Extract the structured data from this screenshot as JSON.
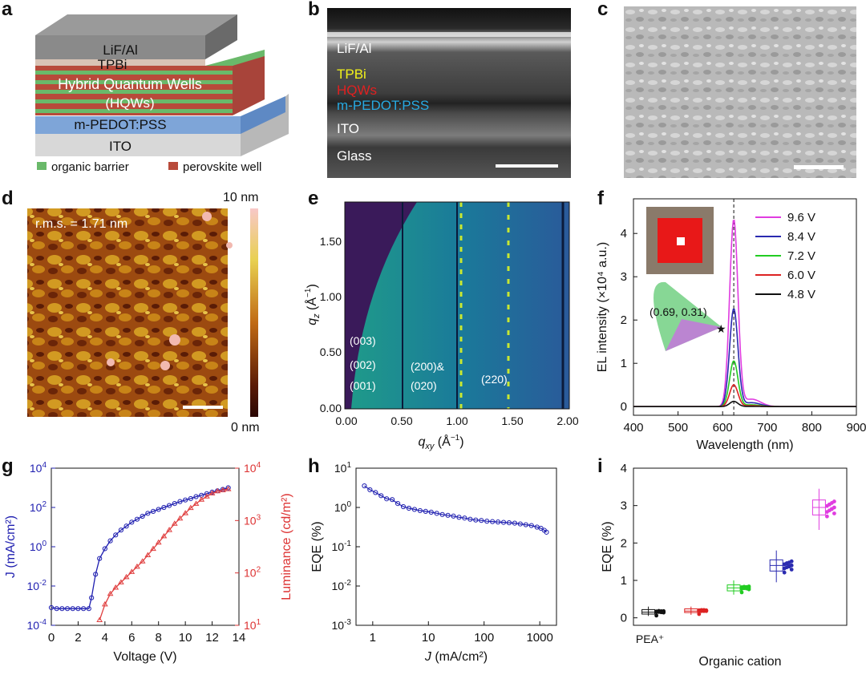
{
  "panel_letters": {
    "a": "a",
    "b": "b",
    "c": "c",
    "d": "d",
    "e": "e",
    "f": "f",
    "g": "g",
    "h": "h",
    "i": "i"
  },
  "panel_a": {
    "layers": [
      "LiF/Al",
      "TPBi",
      "Hybrid Quantum Wells",
      "(HQWs)",
      "m-PEDOT:PSS",
      "ITO"
    ],
    "legend": [
      "organic barrier",
      "perovskite well"
    ],
    "colors": {
      "organic": "#6ab96a",
      "perovskite": "#b84a3a",
      "pedot": "#6f9bd1",
      "ito": "#cfcfcf",
      "lifal": "#7a7a7a",
      "tpbi": "#d9c3b5"
    }
  },
  "panel_b": {
    "labels": [
      {
        "text": "LiF/Al",
        "color": "#ffffff"
      },
      {
        "text": "TPBi",
        "color": "#f2f21a"
      },
      {
        "text": "HQWs",
        "color": "#e02020"
      },
      {
        "text": "m-PEDOT:PSS",
        "color": "#27a9e1"
      },
      {
        "text": "ITO",
        "color": "#ffffff"
      },
      {
        "text": "Glass",
        "color": "#ffffff"
      }
    ]
  },
  "panel_d": {
    "annotation": "r.m.s. = 1.71 nm",
    "colorbar_max": "10 nm",
    "colorbar_min": "0 nm"
  },
  "panel_e": {
    "xlabel_main": "q",
    "xlabel_sub": "xy",
    "xlabel_unit": " (Å",
    "ylabel_main": "q",
    "ylabel_sub": "z",
    "ylabel_unit": " (Å",
    "xticks": [
      "0.00",
      "0.50",
      "1.00",
      "1.50",
      "2.00"
    ],
    "yticks": [
      "0.00",
      "0.50",
      "1.00",
      "1.50"
    ],
    "peaks": [
      "(003)",
      "(002)",
      "(001)",
      "(200)&",
      "(020)",
      "(220)"
    ]
  },
  "chart_data": [
    {
      "type": "line",
      "panel": "f",
      "xlabel": "Wavelength (nm)",
      "ylabel": "EL intensity (×10⁴ a.u.)",
      "xlim": [
        400,
        900
      ],
      "ylim": [
        -0.2,
        4.8
      ],
      "xticks": [
        "400",
        "500",
        "600",
        "700",
        "800",
        "900"
      ],
      "yticks": [
        "0",
        "1",
        "2",
        "3",
        "4"
      ],
      "peak_center": 625,
      "peak_fwhm": 22,
      "series": [
        {
          "name": "9.6 V",
          "peak": 4.3,
          "color": "#e03ce0"
        },
        {
          "name": "8.4 V",
          "peak": 2.25,
          "color": "#2a2ab0"
        },
        {
          "name": "7.2 V",
          "peak": 1.05,
          "color": "#22cc22"
        },
        {
          "name": "6.0 V",
          "peak": 0.5,
          "color": "#dd2222"
        },
        {
          "name": "4.8 V",
          "peak": 0.12,
          "color": "#111111"
        }
      ],
      "inset_coord": "(0.69, 0.31)"
    },
    {
      "type": "line",
      "panel": "g",
      "xlabel": "Voltage (V)",
      "ylabel_left": "J (mA/cm²)",
      "ylabel_right": "Luminance (cd/m²)",
      "xlim": [
        0,
        14
      ],
      "xticks": [
        "0",
        "2",
        "4",
        "6",
        "8",
        "10",
        "12",
        "14"
      ],
      "yticks_left": [
        {
          "base": "10",
          "exp": "4"
        },
        {
          "base": "10",
          "exp": "2"
        },
        {
          "base": "10",
          "exp": "0"
        },
        {
          "base": "10",
          "exp": "-2"
        },
        {
          "base": "10",
          "exp": "-4"
        }
      ],
      "yticks_right": [
        {
          "base": "10",
          "exp": "4"
        },
        {
          "base": "10",
          "exp": "3"
        },
        {
          "base": "10",
          "exp": "2"
        },
        {
          "base": "10",
          "exp": "1"
        }
      ],
      "ylim_left_log": [
        -4,
        4
      ],
      "ylim_right_log": [
        1,
        4
      ],
      "series": [
        {
          "name": "J",
          "axis": "left",
          "color": "#1f1fb0",
          "x": [
            0,
            0.4,
            0.8,
            1.2,
            1.6,
            2.0,
            2.4,
            2.8,
            3.0,
            3.3,
            3.6,
            4.0,
            4.4,
            4.8,
            5.2,
            5.6,
            6.0,
            6.4,
            6.8,
            7.2,
            7.6,
            8.0,
            8.4,
            8.8,
            9.2,
            9.6,
            10.0,
            10.4,
            10.8,
            11.2,
            11.6,
            12.0,
            12.4,
            12.8,
            13.2
          ],
          "logy": [
            -3.1,
            -3.15,
            -3.15,
            -3.15,
            -3.15,
            -3.15,
            -3.15,
            -3.15,
            -2.6,
            -1.4,
            -0.6,
            -0.1,
            0.3,
            0.6,
            0.85,
            1.05,
            1.25,
            1.4,
            1.55,
            1.7,
            1.8,
            1.9,
            2.0,
            2.1,
            2.2,
            2.3,
            2.38,
            2.45,
            2.55,
            2.62,
            2.7,
            2.78,
            2.85,
            2.92,
            3.0
          ]
        },
        {
          "name": "Luminance",
          "axis": "right",
          "color": "#e04040",
          "x": [
            3.6,
            4.0,
            4.4,
            4.8,
            5.2,
            5.6,
            6.0,
            6.4,
            6.8,
            7.2,
            7.6,
            8.0,
            8.4,
            8.8,
            9.2,
            9.6,
            10.0,
            10.4,
            10.8,
            11.2,
            11.6,
            12.0,
            12.4,
            12.8,
            13.2
          ],
          "logy": [
            1.1,
            1.4,
            1.6,
            1.72,
            1.82,
            1.92,
            2.02,
            2.12,
            2.22,
            2.34,
            2.46,
            2.58,
            2.7,
            2.82,
            2.94,
            3.04,
            3.14,
            3.24,
            3.32,
            3.4,
            3.46,
            3.52,
            3.56,
            3.58,
            3.6
          ]
        }
      ]
    },
    {
      "type": "line",
      "panel": "h",
      "xlabel_main": "J",
      "xlabel_unit": " (mA/cm²)",
      "ylabel": "EQE (%)",
      "xlim_log": [
        -0.3,
        3.3
      ],
      "ylim_log": [
        -3,
        1
      ],
      "xticks": [
        "1",
        "10",
        "100",
        "1000"
      ],
      "yticks": [
        {
          "base": "10",
          "exp": "1"
        },
        {
          "base": "10",
          "exp": "0"
        },
        {
          "base": "10",
          "exp": "-1"
        },
        {
          "base": "10",
          "exp": "-2"
        },
        {
          "base": "10",
          "exp": "-3"
        }
      ],
      "series": [
        {
          "name": "EQE",
          "color": "#1f1fb0",
          "logx": [
            -0.15,
            -0.05,
            0.05,
            0.15,
            0.25,
            0.35,
            0.45,
            0.55,
            0.65,
            0.75,
            0.85,
            0.95,
            1.05,
            1.15,
            1.25,
            1.35,
            1.45,
            1.55,
            1.65,
            1.75,
            1.85,
            1.95,
            2.05,
            2.15,
            2.25,
            2.35,
            2.45,
            2.55,
            2.65,
            2.75,
            2.85,
            2.95,
            3.02,
            3.08,
            3.12
          ],
          "logy": [
            0.55,
            0.45,
            0.38,
            0.3,
            0.22,
            0.2,
            0.1,
            0.02,
            -0.02,
            -0.05,
            -0.08,
            -0.1,
            -0.12,
            -0.15,
            -0.18,
            -0.2,
            -0.22,
            -0.25,
            -0.27,
            -0.3,
            -0.32,
            -0.33,
            -0.35,
            -0.36,
            -0.37,
            -0.38,
            -0.39,
            -0.4,
            -0.42,
            -0.44,
            -0.46,
            -0.5,
            -0.53,
            -0.58,
            -0.63
          ]
        }
      ]
    },
    {
      "type": "scatter",
      "panel": "i",
      "xlabel": "Organic cation",
      "ylabel": "EQE (%)",
      "ylim": [
        -0.2,
        4
      ],
      "yticks": [
        "0",
        "1",
        "2",
        "3",
        "4"
      ],
      "categories": [
        "PEA⁺",
        "",
        "",
        "",
        ""
      ],
      "groups": [
        {
          "color": "#111111",
          "median": 0.15,
          "q1": 0.1,
          "q3": 0.22,
          "min": 0.05,
          "max": 0.3
        },
        {
          "color": "#dd2222",
          "median": 0.18,
          "q1": 0.14,
          "q3": 0.24,
          "min": 0.08,
          "max": 0.3
        },
        {
          "color": "#22cc22",
          "median": 0.8,
          "q1": 0.72,
          "q3": 0.88,
          "min": 0.62,
          "max": 1.0
        },
        {
          "color": "#2a2ab0",
          "median": 1.4,
          "q1": 1.25,
          "q3": 1.55,
          "min": 0.95,
          "max": 1.8
        },
        {
          "color": "#e03ce0",
          "median": 2.95,
          "q1": 2.75,
          "q3": 3.15,
          "min": 2.35,
          "max": 3.45
        }
      ]
    }
  ]
}
